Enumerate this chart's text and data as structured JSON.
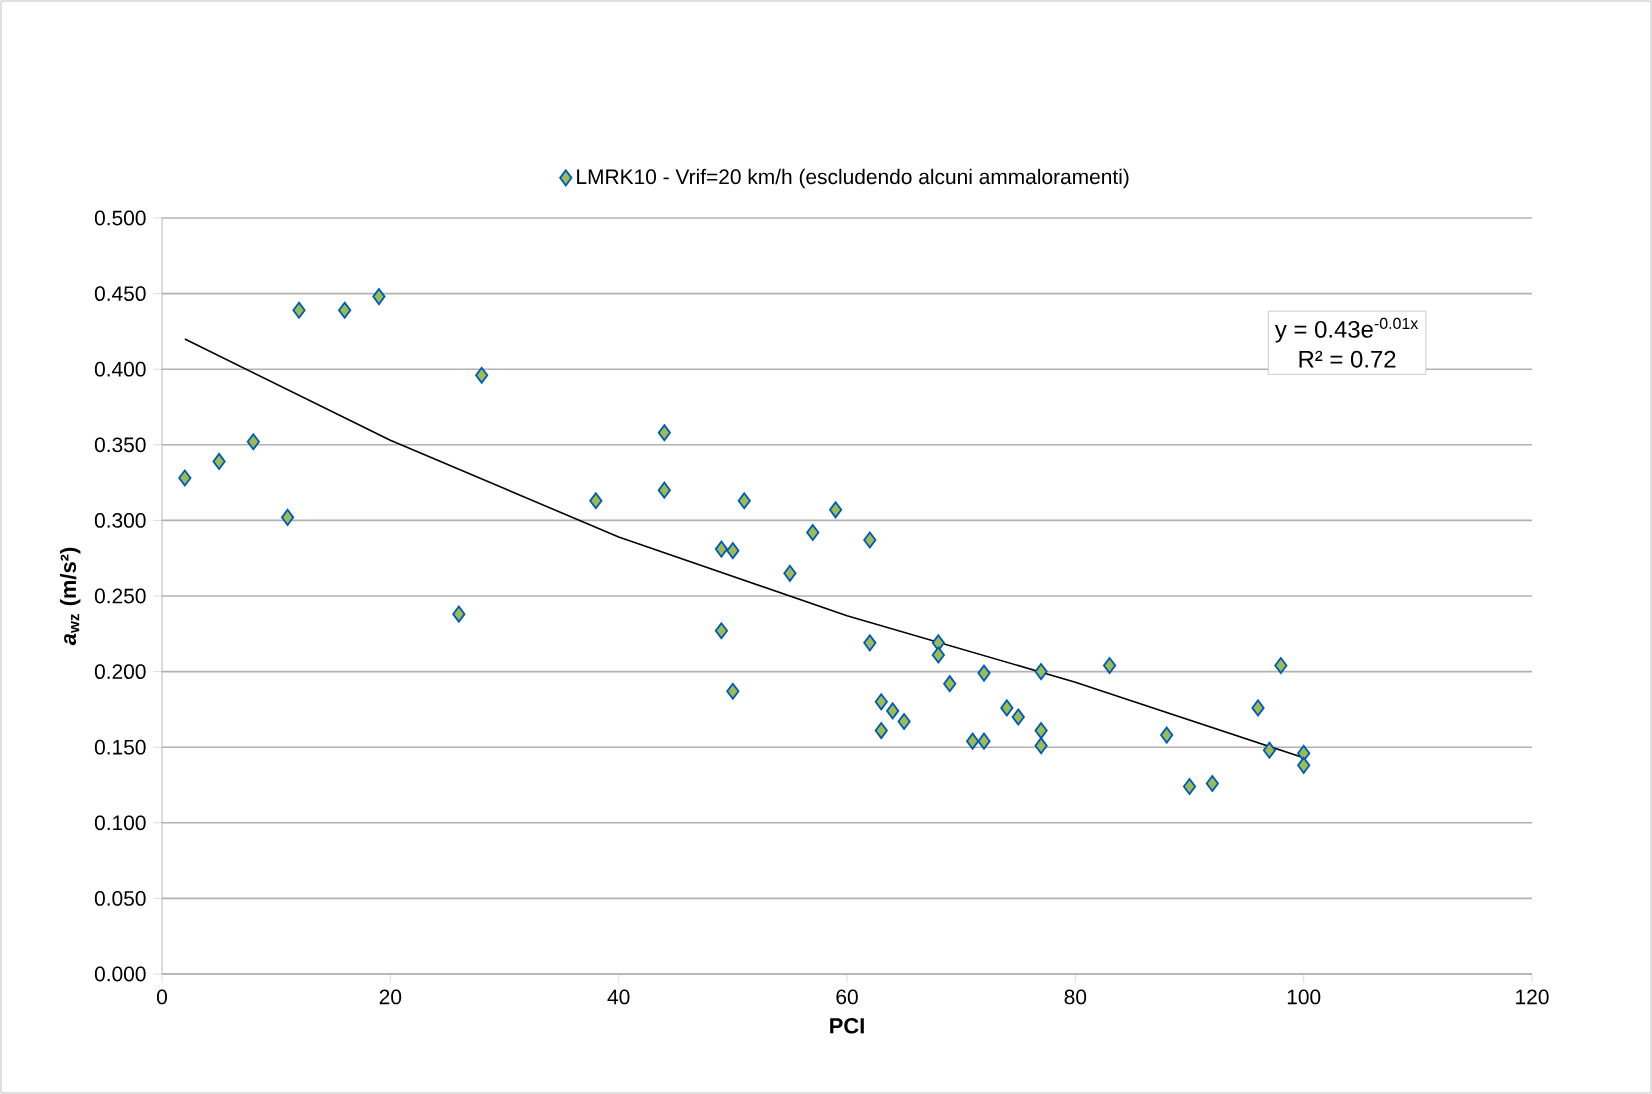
{
  "chart_data": {
    "type": "scatter",
    "xlabel": "PCI",
    "ylabel": "*a*$_{wz}$ (m/s²)",
    "xlim": [
      0,
      120
    ],
    "xticks": [
      0,
      20,
      40,
      60,
      80,
      100,
      120
    ],
    "ylim": [
      0,
      0.5
    ],
    "yticks": [
      {
        "value": 0,
        "label": "0.000"
      },
      {
        "value": 0.05,
        "label": "0.050"
      },
      {
        "value": 0.1,
        "label": "0.100"
      },
      {
        "value": 0.15,
        "label": "0.150"
      },
      {
        "value": 0.2,
        "label": "0.200"
      },
      {
        "value": 0.25,
        "label": "0.250"
      },
      {
        "value": 0.3,
        "label": "0.300"
      },
      {
        "value": 0.35,
        "label": "0.350"
      },
      {
        "value": 0.4,
        "label": "0.400"
      },
      {
        "value": 0.45,
        "label": "0.450"
      },
      {
        "value": 0.5,
        "label": "0.500"
      }
    ],
    "grid": "y",
    "legend": "top",
    "annotations": [
      "y = 0.43e$^{-0.01x}$",
      "R² = 0.72"
    ],
    "series": [
      {
        "name": "LMRK10 - Vrif=20 km/h (escludendo alcuni ammaloramenti)",
        "color": "#9bbb59",
        "marker": "diamond",
        "x": [
          2,
          5,
          8,
          11,
          12,
          16,
          19,
          26,
          28,
          38,
          44,
          44,
          49,
          49,
          50,
          50,
          51,
          55,
          57,
          59,
          62,
          62,
          63,
          63,
          64,
          65,
          68,
          68,
          69,
          71,
          72,
          72,
          74,
          75,
          77,
          77,
          77,
          83,
          88,
          90,
          92,
          96,
          97,
          98,
          100,
          100
        ],
        "values": [
          0.328,
          0.339,
          0.352,
          0.302,
          0.439,
          0.439,
          0.448,
          0.238,
          0.396,
          0.313,
          0.358,
          0.32,
          0.281,
          0.227,
          0.28,
          0.187,
          0.313,
          0.265,
          0.292,
          0.307,
          0.287,
          0.219,
          0.18,
          0.161,
          0.174,
          0.167,
          0.219,
          0.211,
          0.192,
          0.154,
          0.154,
          0.199,
          0.176,
          0.17,
          0.2,
          0.161,
          0.151,
          0.204,
          0.158,
          0.124,
          0.126,
          0.176,
          0.148,
          0.204,
          0.146,
          0.138
        ]
      },
      {
        "type": "line",
        "color": "#000000",
        "marker": "none",
        "line_style": "solid",
        "x": [
          2,
          20,
          40,
          60,
          80,
          100
        ],
        "values": [
          0.42,
          0.353,
          0.289,
          0.237,
          0.193,
          0.143
        ]
      }
    ]
  }
}
